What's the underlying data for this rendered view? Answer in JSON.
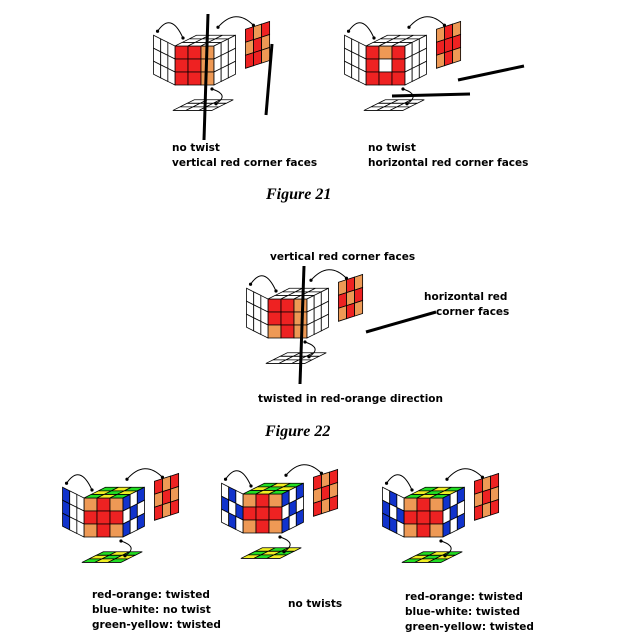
{
  "colors": {
    "red": "#ee2222",
    "orange": "#ee9955",
    "white": "#ffffff",
    "blue": "#1133cc",
    "green": "#22dd22",
    "yellow": "#eeee22",
    "line": "#000000"
  },
  "figure21": {
    "caption": "Figure 21",
    "left_label": [
      "no twist",
      "vertical red corner faces"
    ],
    "right_label": [
      "no twist",
      "horizontal red corner faces"
    ]
  },
  "figure22": {
    "caption": "Figure 22",
    "top_label": "vertical red corner faces",
    "side_label": [
      "horizontal red",
      "corner faces"
    ],
    "bottom_label": "twisted in red-orange direction"
  },
  "figure23": {
    "left_label": [
      "red-orange: twisted",
      "blue-white: no twist",
      "green-yellow: twisted"
    ],
    "middle_label": "no twists",
    "right_label": [
      "red-orange: twisted",
      "blue-white: twisted",
      "green-yellow: twisted"
    ]
  },
  "cubes": [
    {
      "id": "fig21-left",
      "left": [
        "W",
        "W",
        "W",
        "W",
        "W",
        "W",
        "W",
        "W",
        "W"
      ],
      "front": [
        "R",
        "R",
        "O",
        "R",
        "R",
        "O",
        "R",
        "R",
        "O"
      ],
      "right": [
        "W",
        "W",
        "W",
        "W",
        "W",
        "W",
        "W",
        "W",
        "W"
      ],
      "top": [
        "W",
        "W",
        "W",
        "W",
        "W",
        "W",
        "W",
        "W",
        "W"
      ],
      "back": [
        "R",
        "O",
        "R",
        "O",
        "R",
        "O",
        "R",
        "R",
        "O"
      ],
      "bottom": [
        "W",
        "W",
        "W",
        "W",
        "W",
        "W",
        "W",
        "W",
        "W"
      ]
    },
    {
      "id": "fig21-right",
      "left": [
        "W",
        "W",
        "W",
        "W",
        "W",
        "W",
        "W",
        "W",
        "W"
      ],
      "front": [
        "R",
        "O",
        "R",
        "R",
        "W",
        "R",
        "R",
        "R",
        "R"
      ],
      "right": [
        "W",
        "W",
        "W",
        "W",
        "W",
        "W",
        "W",
        "W",
        "W"
      ],
      "top": [
        "W",
        "W",
        "W",
        "W",
        "W",
        "W",
        "W",
        "W",
        "W"
      ],
      "back": [
        "O",
        "R",
        "O",
        "R",
        "R",
        "R",
        "O",
        "R",
        "O"
      ],
      "bottom": [
        "W",
        "W",
        "W",
        "W",
        "W",
        "W",
        "W",
        "W",
        "W"
      ]
    },
    {
      "id": "fig22",
      "left": [
        "W",
        "W",
        "W",
        "W",
        "W",
        "W",
        "W",
        "W",
        "W"
      ],
      "front": [
        "R",
        "R",
        "O",
        "R",
        "R",
        "O",
        "O",
        "R",
        "O"
      ],
      "right": [
        "W",
        "W",
        "W",
        "W",
        "W",
        "W",
        "W",
        "W",
        "W"
      ],
      "top": [
        "W",
        "W",
        "W",
        "W",
        "W",
        "W",
        "W",
        "W",
        "W"
      ],
      "back": [
        "O",
        "R",
        "O",
        "R",
        "O",
        "R",
        "O",
        "R",
        "O"
      ],
      "bottom": [
        "W",
        "W",
        "W",
        "W",
        "W",
        "W",
        "W",
        "W",
        "W"
      ]
    },
    {
      "id": "fig23-left",
      "left": [
        "B",
        "W",
        "W",
        "B",
        "W",
        "W",
        "B",
        "W",
        "W"
      ],
      "front": [
        "O",
        "R",
        "O",
        "R",
        "R",
        "R",
        "O",
        "R",
        "O"
      ],
      "right": [
        "B",
        "W",
        "B",
        "W",
        "B",
        "W",
        "B",
        "W",
        "B"
      ],
      "top": [
        "G",
        "Y",
        "G",
        "Y",
        "G",
        "Y",
        "G",
        "Y",
        "G"
      ],
      "back": [
        "R",
        "O",
        "R",
        "O",
        "R",
        "O",
        "R",
        "O",
        "R"
      ],
      "bottom": [
        "G",
        "Y",
        "G",
        "Y",
        "G",
        "Y",
        "G",
        "Y",
        "G"
      ]
    },
    {
      "id": "fig23-middle",
      "left": [
        "W",
        "B",
        "W",
        "B",
        "W",
        "B",
        "W",
        "B",
        "W"
      ],
      "front": [
        "O",
        "R",
        "O",
        "R",
        "R",
        "R",
        "O",
        "R",
        "O"
      ],
      "right": [
        "B",
        "W",
        "B",
        "W",
        "B",
        "W",
        "B",
        "W",
        "B"
      ],
      "top": [
        "G",
        "Y",
        "G",
        "Y",
        "G",
        "Y",
        "G",
        "Y",
        "G"
      ],
      "back": [
        "R",
        "O",
        "R",
        "O",
        "R",
        "O",
        "R",
        "O",
        "R"
      ],
      "bottom": [
        "Y",
        "G",
        "Y",
        "G",
        "Y",
        "G",
        "Y",
        "G",
        "Y"
      ]
    },
    {
      "id": "fig23-right",
      "left": [
        "W",
        "B",
        "W",
        "B",
        "W",
        "B",
        "B",
        "B",
        "W"
      ],
      "front": [
        "O",
        "R",
        "O",
        "R",
        "R",
        "R",
        "O",
        "R",
        "O"
      ],
      "right": [
        "B",
        "W",
        "B",
        "W",
        "B",
        "W",
        "B",
        "W",
        "B"
      ],
      "top": [
        "G",
        "Y",
        "G",
        "Y",
        "G",
        "Y",
        "G",
        "Y",
        "G"
      ],
      "back": [
        "R",
        "O",
        "R",
        "O",
        "R",
        "O",
        "R",
        "O",
        "R"
      ],
      "bottom": [
        "G",
        "Y",
        "G",
        "Y",
        "G",
        "Y",
        "G",
        "Y",
        "G"
      ]
    }
  ]
}
